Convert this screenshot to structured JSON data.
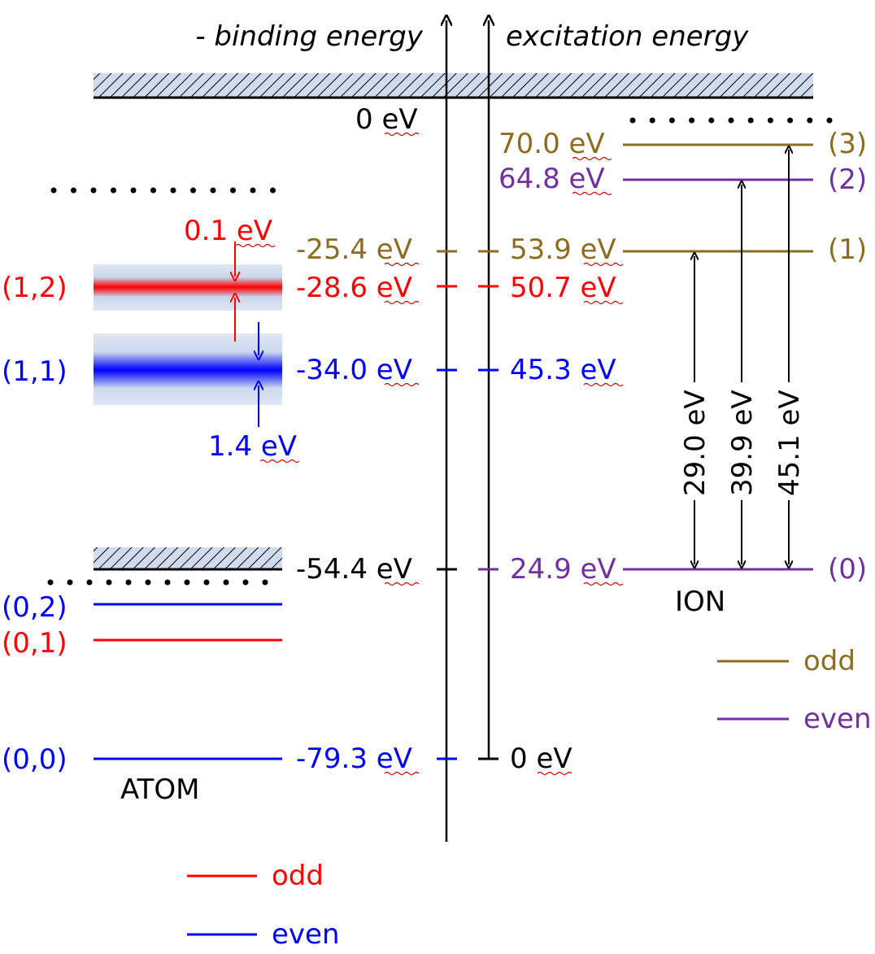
{
  "colors": {
    "black": "#000000",
    "odd_atom": "#ff0000",
    "even_atom": "#0000ff",
    "odd_ion": "#8c6d1f",
    "even_ion": "#7030a0",
    "band_bg": "#c5d3ea",
    "threshold_bg": "#d0dcee"
  },
  "axes": {
    "binding_label": "- binding energy",
    "excitation_label": "excitation energy"
  },
  "zero_binding": "0 eV",
  "zero_excitation": "0 eV",
  "atom": {
    "label": "ATOM",
    "states": [
      {
        "label": "(1,2)",
        "binding": "-28.6 eV",
        "excitation": "50.7 eV",
        "parity": "odd"
      },
      {
        "label": "(1,1)",
        "binding": "-34.0 eV",
        "excitation": "45.3 eV",
        "parity": "even"
      },
      {
        "label": "(0,2)",
        "parity": "even"
      },
      {
        "label": "(0,1)",
        "parity": "odd"
      },
      {
        "label": "(0,0)",
        "binding": "-79.3 eV",
        "parity": "even"
      }
    ],
    "width_12": "0.1 eV",
    "width_11": "1.4 eV",
    "threshold_binding": "-54.4 eV"
  },
  "ion": {
    "label": "ION",
    "states": [
      {
        "label": "(3)",
        "excitation": "70.0 eV",
        "parity": "odd"
      },
      {
        "label": "(2)",
        "excitation": "64.8 eV",
        "parity": "even"
      },
      {
        "label": "(1)",
        "excitation": "53.9 eV",
        "binding": "-25.4 eV",
        "parity": "odd"
      },
      {
        "label": "(0)",
        "excitation": "24.9 eV",
        "parity": "even"
      }
    ],
    "transitions": [
      "29.0 eV",
      "39.9 eV",
      "45.1 eV"
    ]
  },
  "legend_ion": [
    {
      "label": "odd",
      "color": "#8c6d1f"
    },
    {
      "label": "even",
      "color": "#7030a0"
    }
  ],
  "legend_atom": [
    {
      "label": "odd",
      "color": "#ff0000"
    },
    {
      "label": "even",
      "color": "#0000ff"
    }
  ]
}
